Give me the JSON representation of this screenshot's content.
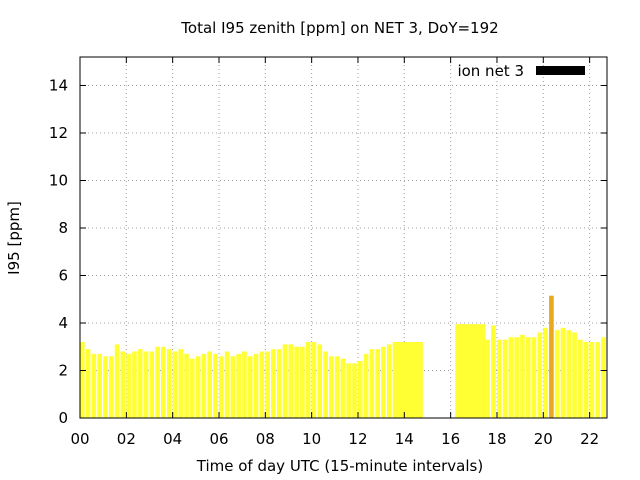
{
  "chart_data": {
    "type": "bar",
    "title": "Total I95 zenith [ppm] on NET 3, DoY=192",
    "xlabel": "Time of day UTC (15-minute intervals)",
    "ylabel": "I95 [ppm]",
    "xlim": [
      0,
      22.75
    ],
    "ylim": [
      0,
      15.2
    ],
    "grid": true,
    "legend_position": "top-right",
    "xticks": [
      {
        "v": 0,
        "label": "00"
      },
      {
        "v": 2,
        "label": "02"
      },
      {
        "v": 4,
        "label": "04"
      },
      {
        "v": 6,
        "label": "06"
      },
      {
        "v": 8,
        "label": "08"
      },
      {
        "v": 10,
        "label": "10"
      },
      {
        "v": 12,
        "label": "12"
      },
      {
        "v": 14,
        "label": "14"
      },
      {
        "v": 16,
        "label": "16"
      },
      {
        "v": 18,
        "label": "18"
      },
      {
        "v": 20,
        "label": "20"
      },
      {
        "v": 22,
        "label": "22"
      }
    ],
    "yticks": [
      {
        "v": 0,
        "label": "0"
      },
      {
        "v": 2,
        "label": "2"
      },
      {
        "v": 4,
        "label": "4"
      },
      {
        "v": 6,
        "label": "6"
      },
      {
        "v": 8,
        "label": "8"
      },
      {
        "v": 10,
        "label": "10"
      },
      {
        "v": 12,
        "label": "12"
      },
      {
        "v": 14,
        "label": "14"
      }
    ],
    "series": [
      {
        "name": "ion net 3",
        "legend_color": "#000000",
        "bar_color": "#ffff33",
        "highlight_color": "#e8a820",
        "data": [
          {
            "x": 0.0,
            "y": 3.2
          },
          {
            "x": 0.25,
            "y": 2.9
          },
          {
            "x": 0.5,
            "y": 2.7
          },
          {
            "x": 0.75,
            "y": 2.7
          },
          {
            "x": 1.0,
            "y": 2.6
          },
          {
            "x": 1.25,
            "y": 2.6
          },
          {
            "x": 1.5,
            "y": 3.1
          },
          {
            "x": 1.75,
            "y": 2.8
          },
          {
            "x": 2.0,
            "y": 2.7
          },
          {
            "x": 2.25,
            "y": 2.8
          },
          {
            "x": 2.5,
            "y": 2.9
          },
          {
            "x": 2.75,
            "y": 2.8
          },
          {
            "x": 3.0,
            "y": 2.8
          },
          {
            "x": 3.25,
            "y": 3.0
          },
          {
            "x": 3.5,
            "y": 3.0
          },
          {
            "x": 3.75,
            "y": 2.9
          },
          {
            "x": 4.0,
            "y": 2.8
          },
          {
            "x": 4.25,
            "y": 2.9
          },
          {
            "x": 4.5,
            "y": 2.7
          },
          {
            "x": 4.75,
            "y": 2.5
          },
          {
            "x": 5.0,
            "y": 2.6
          },
          {
            "x": 5.25,
            "y": 2.7
          },
          {
            "x": 5.5,
            "y": 2.8
          },
          {
            "x": 5.75,
            "y": 2.7
          },
          {
            "x": 6.0,
            "y": 2.6
          },
          {
            "x": 6.25,
            "y": 2.8
          },
          {
            "x": 6.5,
            "y": 2.6
          },
          {
            "x": 6.75,
            "y": 2.7
          },
          {
            "x": 7.0,
            "y": 2.8
          },
          {
            "x": 7.25,
            "y": 2.6
          },
          {
            "x": 7.5,
            "y": 2.7
          },
          {
            "x": 7.75,
            "y": 2.8
          },
          {
            "x": 8.0,
            "y": 2.8
          },
          {
            "x": 8.25,
            "y": 2.9
          },
          {
            "x": 8.5,
            "y": 2.9
          },
          {
            "x": 8.75,
            "y": 3.1
          },
          {
            "x": 9.0,
            "y": 3.1
          },
          {
            "x": 9.25,
            "y": 3.0
          },
          {
            "x": 9.5,
            "y": 3.0
          },
          {
            "x": 9.75,
            "y": 3.2
          },
          {
            "x": 10.0,
            "y": 3.2
          },
          {
            "x": 10.25,
            "y": 3.1
          },
          {
            "x": 10.5,
            "y": 2.8
          },
          {
            "x": 10.75,
            "y": 2.6
          },
          {
            "x": 11.0,
            "y": 2.6
          },
          {
            "x": 11.25,
            "y": 2.5
          },
          {
            "x": 11.5,
            "y": 2.3
          },
          {
            "x": 11.75,
            "y": 2.3
          },
          {
            "x": 12.0,
            "y": 2.4
          },
          {
            "x": 12.25,
            "y": 2.7
          },
          {
            "x": 12.5,
            "y": 2.9
          },
          {
            "x": 12.75,
            "y": 2.9
          },
          {
            "x": 13.0,
            "y": 3.0
          },
          {
            "x": 13.25,
            "y": 3.1
          },
          {
            "x": 13.5,
            "y": 3.2,
            "w": 1.3
          },
          {
            "x": 16.2,
            "y": 3.95,
            "w": 1.3
          },
          {
            "x": 17.5,
            "y": 3.3
          },
          {
            "x": 17.75,
            "y": 3.9
          },
          {
            "x": 18.0,
            "y": 3.3
          },
          {
            "x": 18.25,
            "y": 3.3
          },
          {
            "x": 18.5,
            "y": 3.4
          },
          {
            "x": 18.75,
            "y": 3.4
          },
          {
            "x": 19.0,
            "y": 3.5
          },
          {
            "x": 19.25,
            "y": 3.4
          },
          {
            "x": 19.5,
            "y": 3.4
          },
          {
            "x": 19.75,
            "y": 3.6
          },
          {
            "x": 20.0,
            "y": 3.8
          },
          {
            "x": 20.25,
            "y": 5.15,
            "hl": true
          },
          {
            "x": 20.5,
            "y": 3.7
          },
          {
            "x": 20.75,
            "y": 3.8
          },
          {
            "x": 21.0,
            "y": 3.7
          },
          {
            "x": 21.25,
            "y": 3.6
          },
          {
            "x": 21.5,
            "y": 3.3
          },
          {
            "x": 21.75,
            "y": 3.2
          },
          {
            "x": 22.0,
            "y": 3.2
          },
          {
            "x": 22.25,
            "y": 3.2
          },
          {
            "x": 22.5,
            "y": 3.4
          }
        ]
      }
    ]
  }
}
